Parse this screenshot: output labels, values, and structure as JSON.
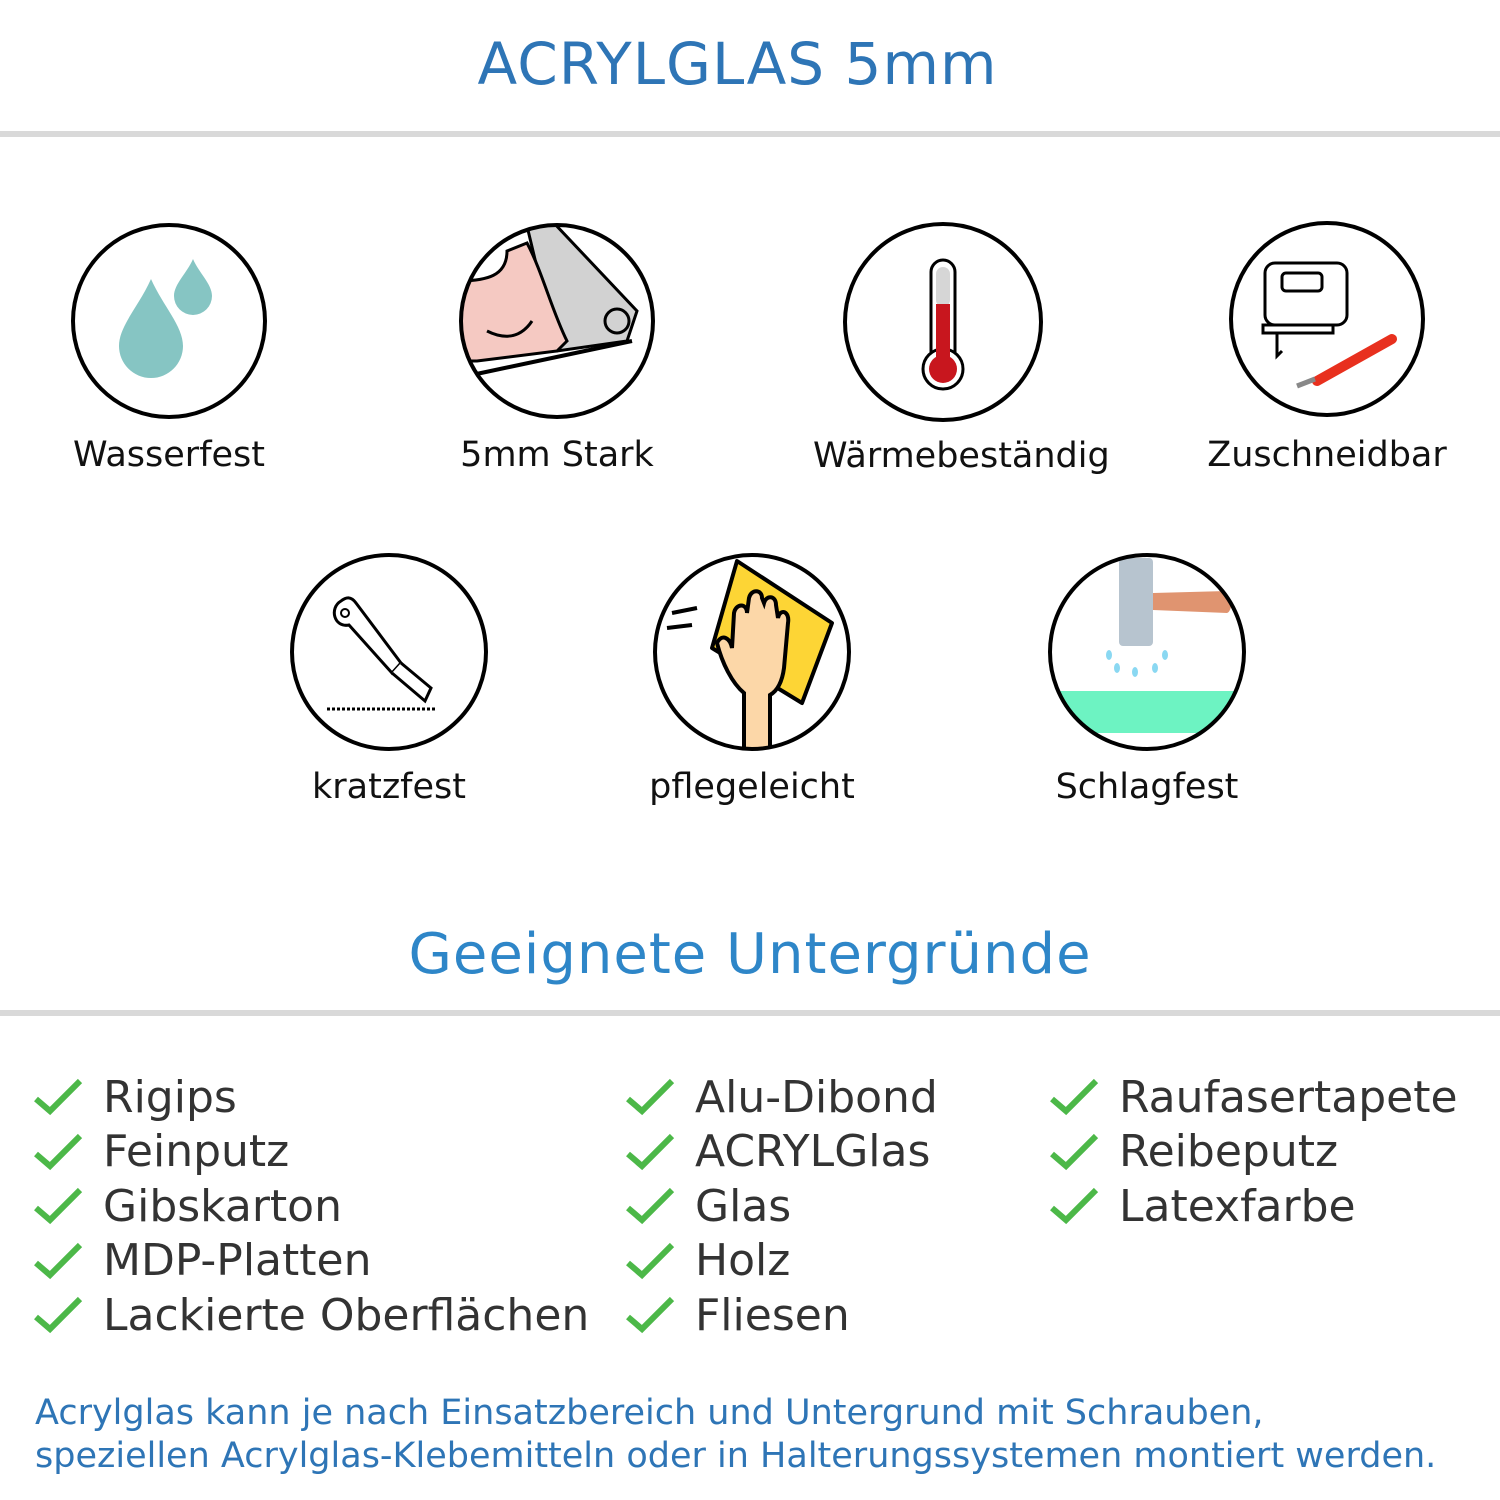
{
  "header": {
    "title": "ACRYLGLAS 5mm"
  },
  "features": [
    {
      "label": "Wasserfest",
      "icon": "water-drops-icon"
    },
    {
      "label": "5mm Stark",
      "icon": "strong-arm-icon"
    },
    {
      "label": "Wärmebeständig",
      "icon": "thermometer-icon"
    },
    {
      "label": "Zuschneidbar",
      "icon": "jigsaw-cutter-icon"
    },
    {
      "label": "kratzfest",
      "icon": "box-cutter-icon"
    },
    {
      "label": "pflegeleicht",
      "icon": "wiping-hand-icon"
    },
    {
      "label": "Schlagfest",
      "icon": "hammer-icon"
    }
  ],
  "surfaces": {
    "title": "Geeignete Untergründe",
    "columns": [
      [
        "Rigips",
        "Feinputz",
        "Gibskarton",
        "MDP-Platten",
        "Lackierte Oberflächen"
      ],
      [
        "Alu-Dibond",
        "ACRYLGlas",
        "Glas",
        "Holz",
        "Fliesen"
      ],
      [
        "Raufasertapete",
        "Reibeputz",
        "Latexfarbe"
      ]
    ]
  },
  "footer": {
    "line1": "Acrylglas kann je nach Einsatzbereich und Untergrund mit Schrauben,",
    "line2": "speziellen Acrylglas-Klebemitteln oder in Halterungssystemen montiert werden."
  },
  "colors": {
    "title": "#2e75b6",
    "subtitle": "#2e86c8",
    "check": "#4cb848",
    "rule": "#d9d9d9"
  }
}
